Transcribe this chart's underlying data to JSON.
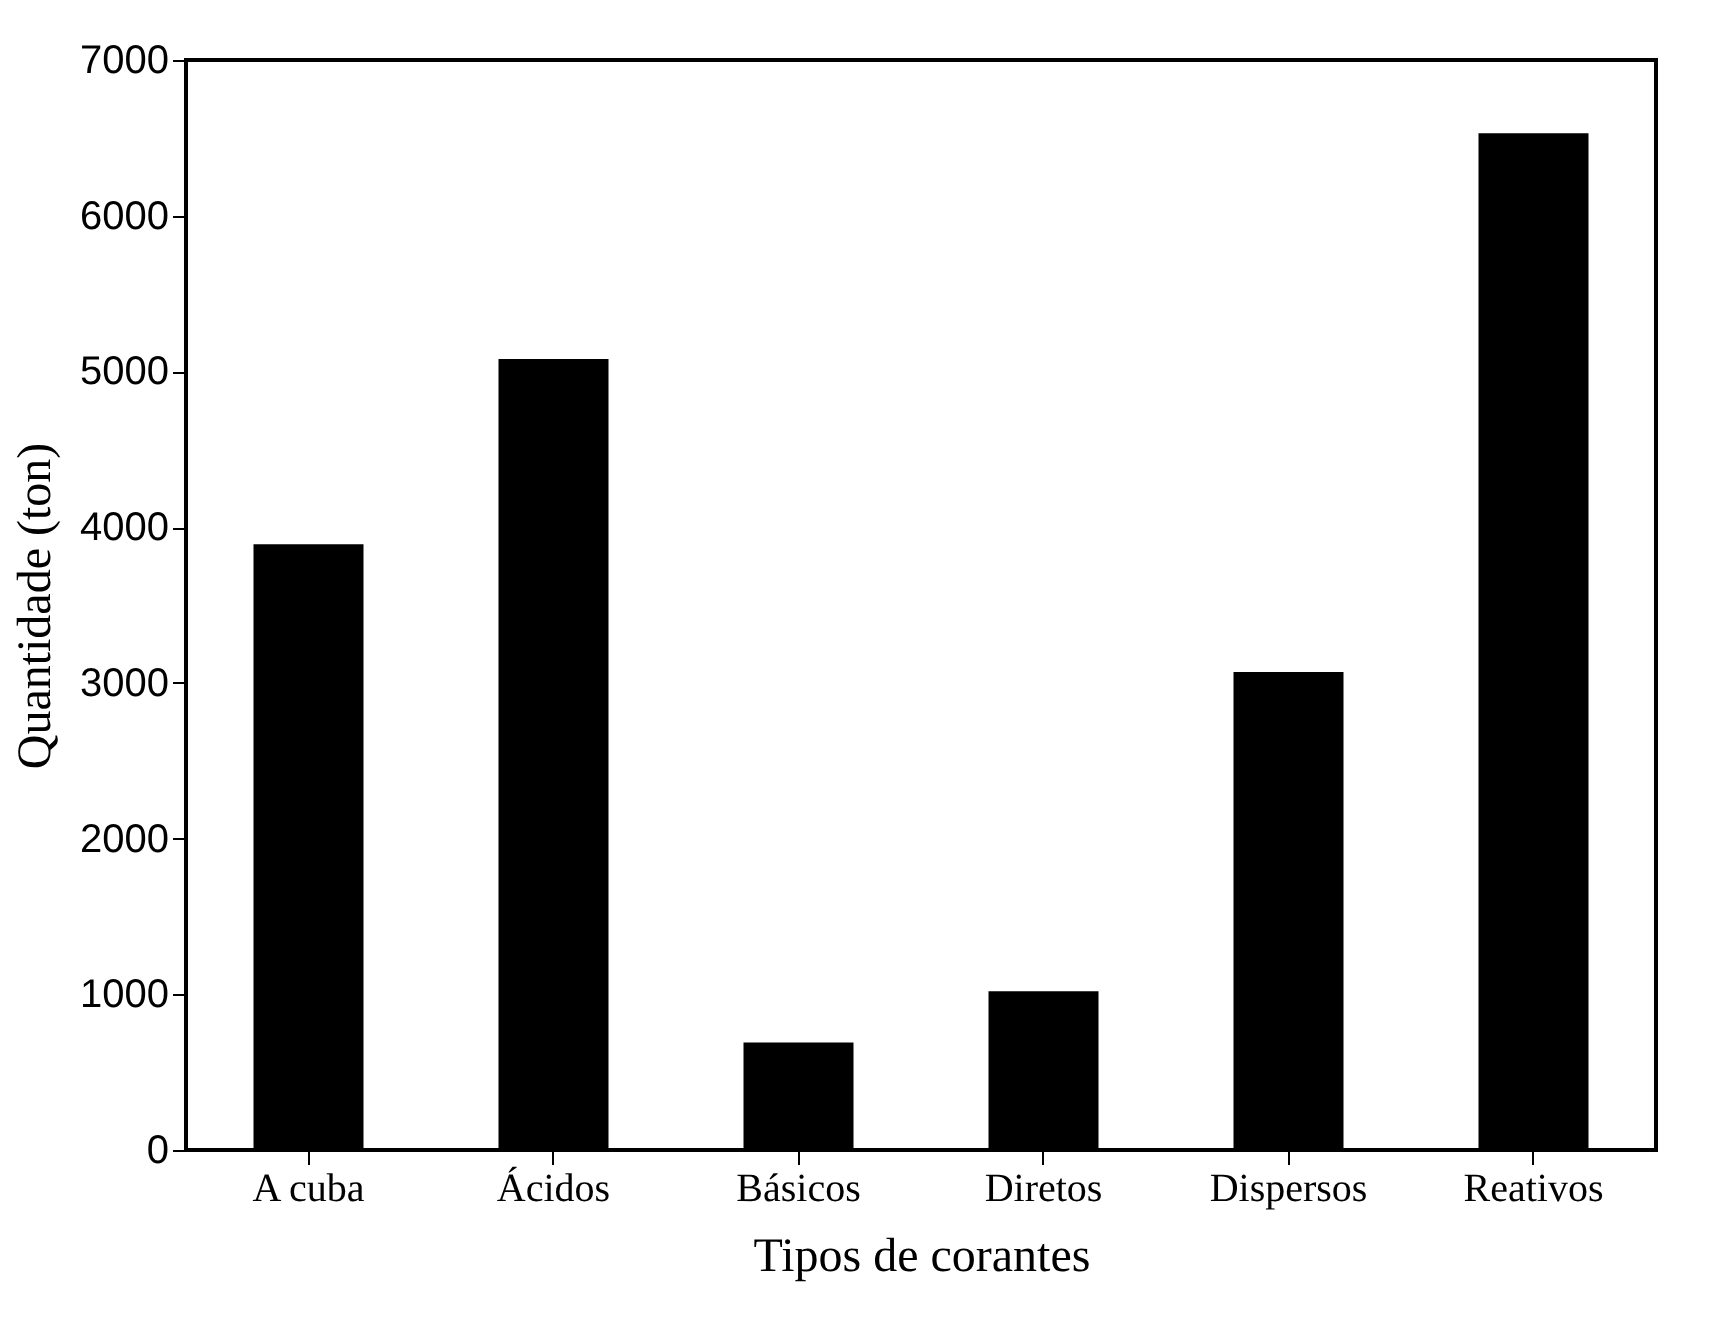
{
  "chart_data": {
    "type": "bar",
    "xlabel": "Tipos de corantes",
    "ylabel": "Quantidade (ton)",
    "categories": [
      "A cuba",
      "Ácidos",
      "Básicos",
      "Diretos",
      "Dispersos",
      "Reativos"
    ],
    "values": [
      3890,
      5080,
      690,
      1020,
      3070,
      6530
    ],
    "color": "#000000",
    "ylim": [
      0,
      7000
    ],
    "yticks": [
      0,
      1000,
      2000,
      3000,
      4000,
      5000,
      6000,
      7000
    ],
    "grid": false
  }
}
